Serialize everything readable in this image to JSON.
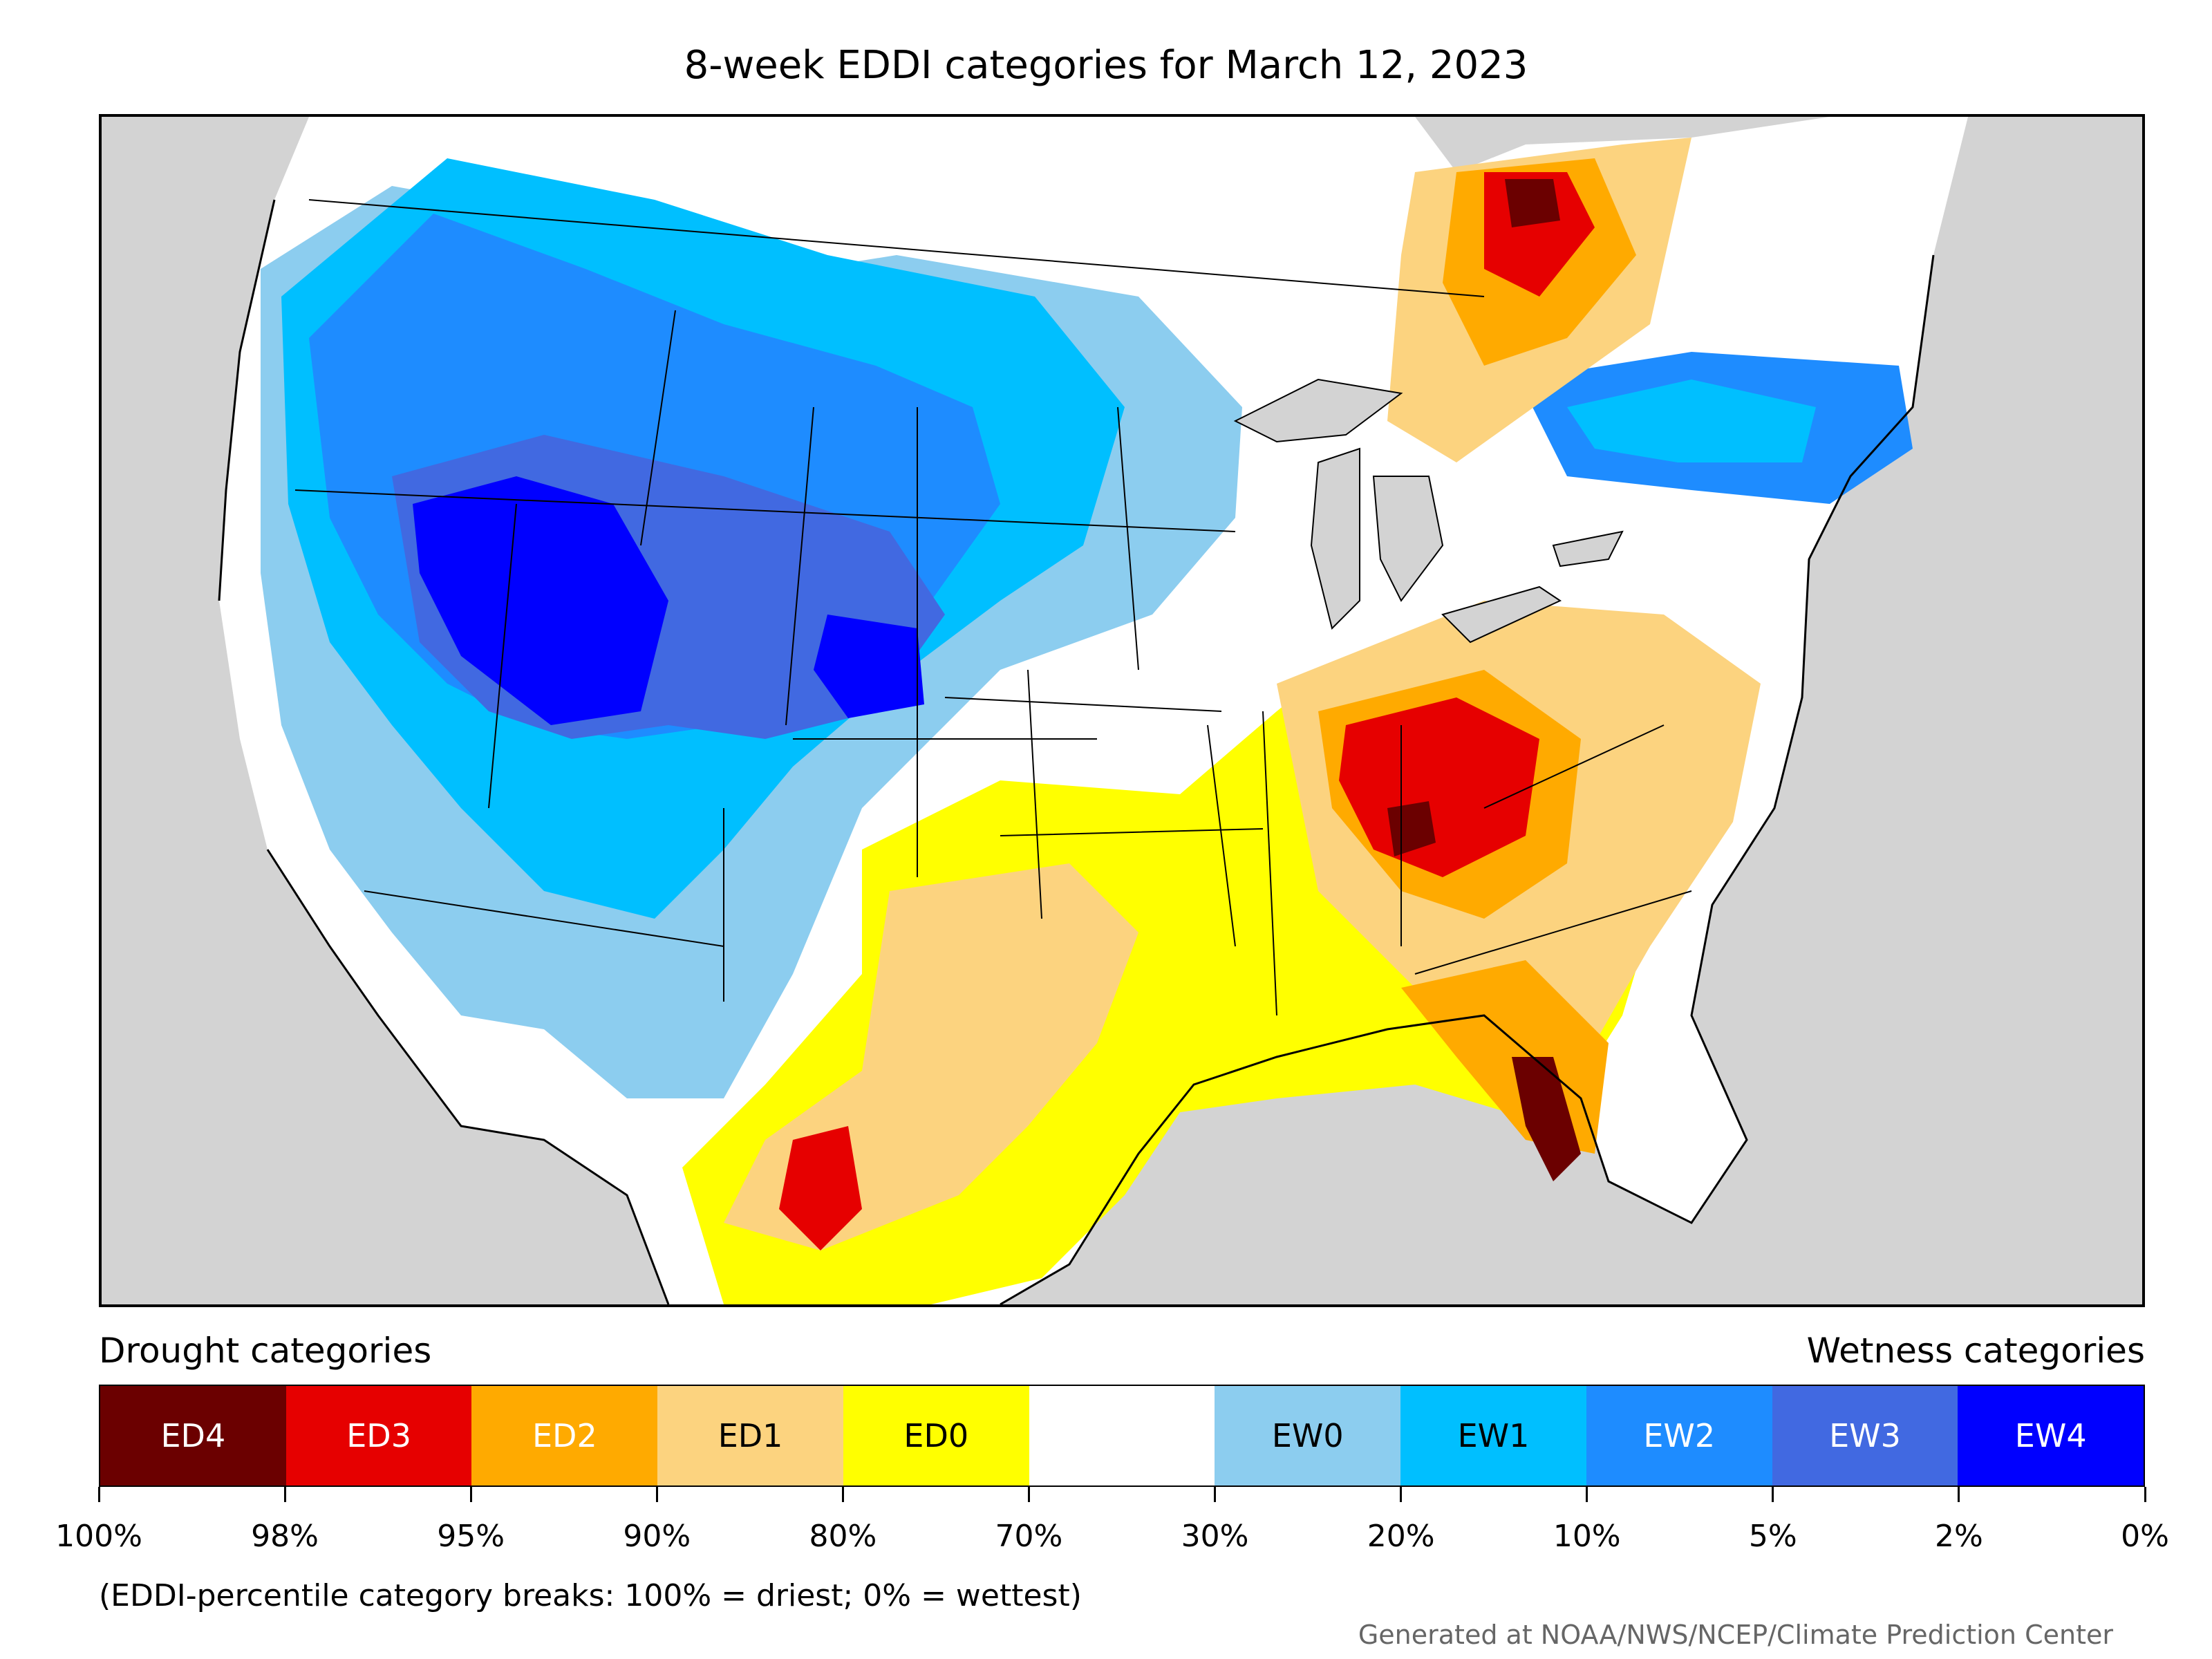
{
  "title": "8-week EDDI categories for March 12, 2023",
  "colors": {
    "ED4": "#6b0000",
    "ED3": "#e60000",
    "ED2": "#ffaa00",
    "ED1": "#fcd37f",
    "ED0": "#ffff00",
    "neutral": "#ffffff",
    "EW0": "#8ccdef",
    "EW1": "#00bfff",
    "EW2": "#1e8cff",
    "EW3": "#4169e1",
    "EW4": "#0000ff",
    "background": "#d3d3d3"
  },
  "legend": {
    "drought_heading": "Drought categories",
    "wetness_heading": "Wetness categories",
    "categories": [
      {
        "label": "ED4",
        "color": "#6b0000",
        "text_color": "#ffffff"
      },
      {
        "label": "ED3",
        "color": "#e60000",
        "text_color": "#ffffff"
      },
      {
        "label": "ED2",
        "color": "#ffaa00",
        "text_color": "#ffffff"
      },
      {
        "label": "ED1",
        "color": "#fcd37f",
        "text_color": "#000000"
      },
      {
        "label": "ED0",
        "color": "#ffff00",
        "text_color": "#000000"
      },
      {
        "label": "",
        "color": "#ffffff",
        "text_color": "#000000"
      },
      {
        "label": "EW0",
        "color": "#8ccdef",
        "text_color": "#000000"
      },
      {
        "label": "EW1",
        "color": "#00bfff",
        "text_color": "#000000"
      },
      {
        "label": "EW2",
        "color": "#1e8cff",
        "text_color": "#ffffff"
      },
      {
        "label": "EW3",
        "color": "#4169e1",
        "text_color": "#ffffff"
      },
      {
        "label": "EW4",
        "color": "#0000ff",
        "text_color": "#ffffff"
      }
    ],
    "ticks": [
      "100%",
      "98%",
      "95%",
      "90%",
      "80%",
      "70%",
      "30%",
      "20%",
      "10%",
      "5%",
      "2%",
      "0%"
    ]
  },
  "note": "(EDDI-percentile category breaks: 100% = driest; 0% = wettest)",
  "credit": "Generated at NOAA/NWS/NCEP/Climate Prediction Center"
}
